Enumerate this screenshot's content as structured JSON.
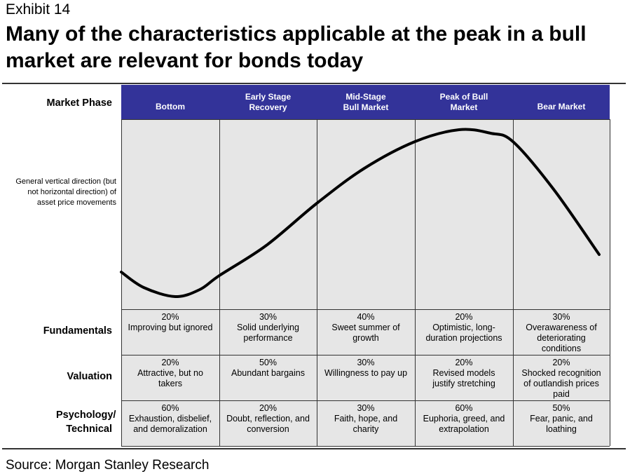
{
  "exhibit_label": "Exhibit 14",
  "title": "Many of the characteristics applicable at the peak in a bull market are relevant for bonds today",
  "row_header": "Market Phase",
  "phases": [
    {
      "line1": "",
      "line2": "Bottom"
    },
    {
      "line1": "Early Stage",
      "line2": "Recovery"
    },
    {
      "line1": "Mid-Stage",
      "line2": "Bull Market"
    },
    {
      "line1": "Peak of Bull",
      "line2": "Market"
    },
    {
      "line1": "",
      "line2": "Bear Market"
    }
  ],
  "curve_label": "General vertical direction (but not horizontal direction) of asset price movements",
  "rows": [
    {
      "label": "Fundamentals",
      "cells": [
        {
          "pct": "20%",
          "text": "Improving but ignored"
        },
        {
          "pct": "30%",
          "text": "Solid underlying performance"
        },
        {
          "pct": "40%",
          "text": "Sweet summer of growth"
        },
        {
          "pct": "20%",
          "text": "Optimistic, long-duration projections"
        },
        {
          "pct": "30%",
          "text": "Overawareness of deteriorating conditions"
        }
      ]
    },
    {
      "label": "Valuation",
      "cells": [
        {
          "pct": "20%",
          "text": "Attractive, but no takers"
        },
        {
          "pct": "50%",
          "text": "Abundant bargains"
        },
        {
          "pct": "30%",
          "text": "Willingness to pay up"
        },
        {
          "pct": "20%",
          "text": "Revised models justify stretching"
        },
        {
          "pct": "20%",
          "text": "Shocked recognition of outlandish prices paid"
        }
      ]
    },
    {
      "label": "Psychology/ Technical",
      "cells": [
        {
          "pct": "60%",
          "text": "Exhaustion, disbelief, and demoralization"
        },
        {
          "pct": "20%",
          "text": "Doubt, reflection, and conversion"
        },
        {
          "pct": "30%",
          "text": "Faith, hope, and charity"
        },
        {
          "pct": "60%",
          "text": "Euphoria, greed, and extrapolation"
        },
        {
          "pct": "50%",
          "text": "Fear, panic, and loathing"
        }
      ]
    }
  ],
  "source": "Source: Morgan Stanley Research",
  "colors": {
    "header_bg": "#333399",
    "cell_bg": "#e6e6e6"
  }
}
